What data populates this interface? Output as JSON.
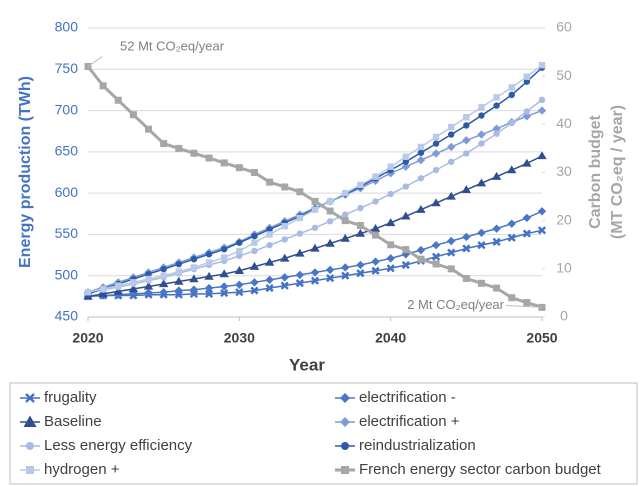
{
  "chart_data": {
    "type": "line",
    "x_label": "Year",
    "y_label": "Energy production (TWh)",
    "y2_label": [
      "Carbon budget",
      "(MT CO₂eq / year)"
    ],
    "annotations": [
      "52 Mt CO₂eq/year",
      "2 Mt CO₂eq/year"
    ],
    "x": [
      2020,
      2021,
      2022,
      2023,
      2024,
      2025,
      2026,
      2027,
      2028,
      2029,
      2030,
      2031,
      2032,
      2033,
      2034,
      2035,
      2036,
      2037,
      2038,
      2039,
      2040,
      2041,
      2042,
      2043,
      2044,
      2045,
      2046,
      2047,
      2048,
      2049,
      2050
    ],
    "xlim": [
      2020,
      2050
    ],
    "xticks": [
      2020,
      2030,
      2040,
      2050
    ],
    "ylim": [
      450,
      800
    ],
    "yticks": [
      450,
      500,
      550,
      600,
      650,
      700,
      750,
      800
    ],
    "y2lim": [
      0,
      60
    ],
    "y2ticks": [
      0,
      10,
      20,
      30,
      40,
      50,
      60
    ],
    "grid": true,
    "legend": "bottom",
    "series": [
      {
        "name": "frugality",
        "color": "#4472c4",
        "marker": "x",
        "values": [
          475,
          476,
          476,
          476,
          477,
          477,
          477,
          478,
          478,
          479,
          480,
          482,
          485,
          488,
          491,
          494,
          497,
          500,
          503,
          506,
          509,
          513,
          518,
          523,
          528,
          533,
          537,
          541,
          546,
          551,
          555
        ]
      },
      {
        "name": "electrification -",
        "color": "#4a76c6",
        "marker": "diamond",
        "values": [
          475,
          476,
          477,
          478,
          479,
          480,
          482,
          483,
          485,
          487,
          489,
          492,
          495,
          498,
          501,
          504,
          507,
          510,
          513,
          517,
          521,
          526,
          531,
          537,
          542,
          547,
          552,
          557,
          563,
          570,
          578
        ]
      },
      {
        "name": "Baseline",
        "color": "#2f4f8f",
        "marker": "triangle",
        "values": [
          475,
          478,
          481,
          484,
          487,
          490,
          493,
          496,
          499,
          502,
          506,
          511,
          516,
          521,
          527,
          533,
          539,
          545,
          551,
          557,
          564,
          572,
          580,
          588,
          596,
          604,
          612,
          620,
          628,
          636,
          645
        ]
      },
      {
        "name": "electrification +",
        "color": "#7d9bd6",
        "marker": "diamond",
        "values": [
          480,
          486,
          492,
          498,
          504,
          510,
          516,
          522,
          528,
          534,
          541,
          550,
          558,
          566,
          574,
          582,
          590,
          598,
          606,
          615,
          624,
          632,
          640,
          648,
          656,
          664,
          671,
          678,
          686,
          693,
          700
        ]
      },
      {
        "name": "Less energy efficiency",
        "color": "#a7bbe4",
        "marker": "circle",
        "values": [
          480,
          483,
          486,
          490,
          494,
          498,
          503,
          508,
          513,
          518,
          524,
          530,
          537,
          544,
          551,
          558,
          566,
          574,
          582,
          590,
          599,
          608,
          618,
          628,
          638,
          648,
          660,
          672,
          685,
          699,
          713
        ]
      },
      {
        "name": "reindustrialization",
        "color": "#2e5aa8",
        "marker": "circle",
        "values": [
          478,
          484,
          490,
          496,
          502,
          508,
          514,
          520,
          526,
          532,
          540,
          548,
          556,
          564,
          572,
          581,
          590,
          599,
          608,
          618,
          628,
          638,
          649,
          660,
          671,
          682,
          694,
          706,
          719,
          735,
          752
        ]
      },
      {
        "name": "hydrogen +",
        "color": "#b8c9ea",
        "marker": "square",
        "values": [
          480,
          484,
          488,
          492,
          496,
          500,
          505,
          510,
          516,
          522,
          530,
          540,
          550,
          560,
          570,
          580,
          590,
          600,
          610,
          620,
          632,
          644,
          656,
          668,
          680,
          692,
          704,
          716,
          728,
          741,
          755
        ]
      },
      {
        "name": "French energy sector carbon budget",
        "color": "#a6a6a6",
        "marker": "square",
        "axis": "y2",
        "values": [
          52,
          48,
          45,
          42,
          39,
          36,
          35,
          34,
          33,
          32,
          31,
          30,
          28,
          27,
          26,
          24,
          22,
          20,
          19,
          17,
          15,
          14,
          12,
          11,
          10,
          8,
          7,
          6,
          4,
          3,
          2
        ]
      }
    ]
  }
}
